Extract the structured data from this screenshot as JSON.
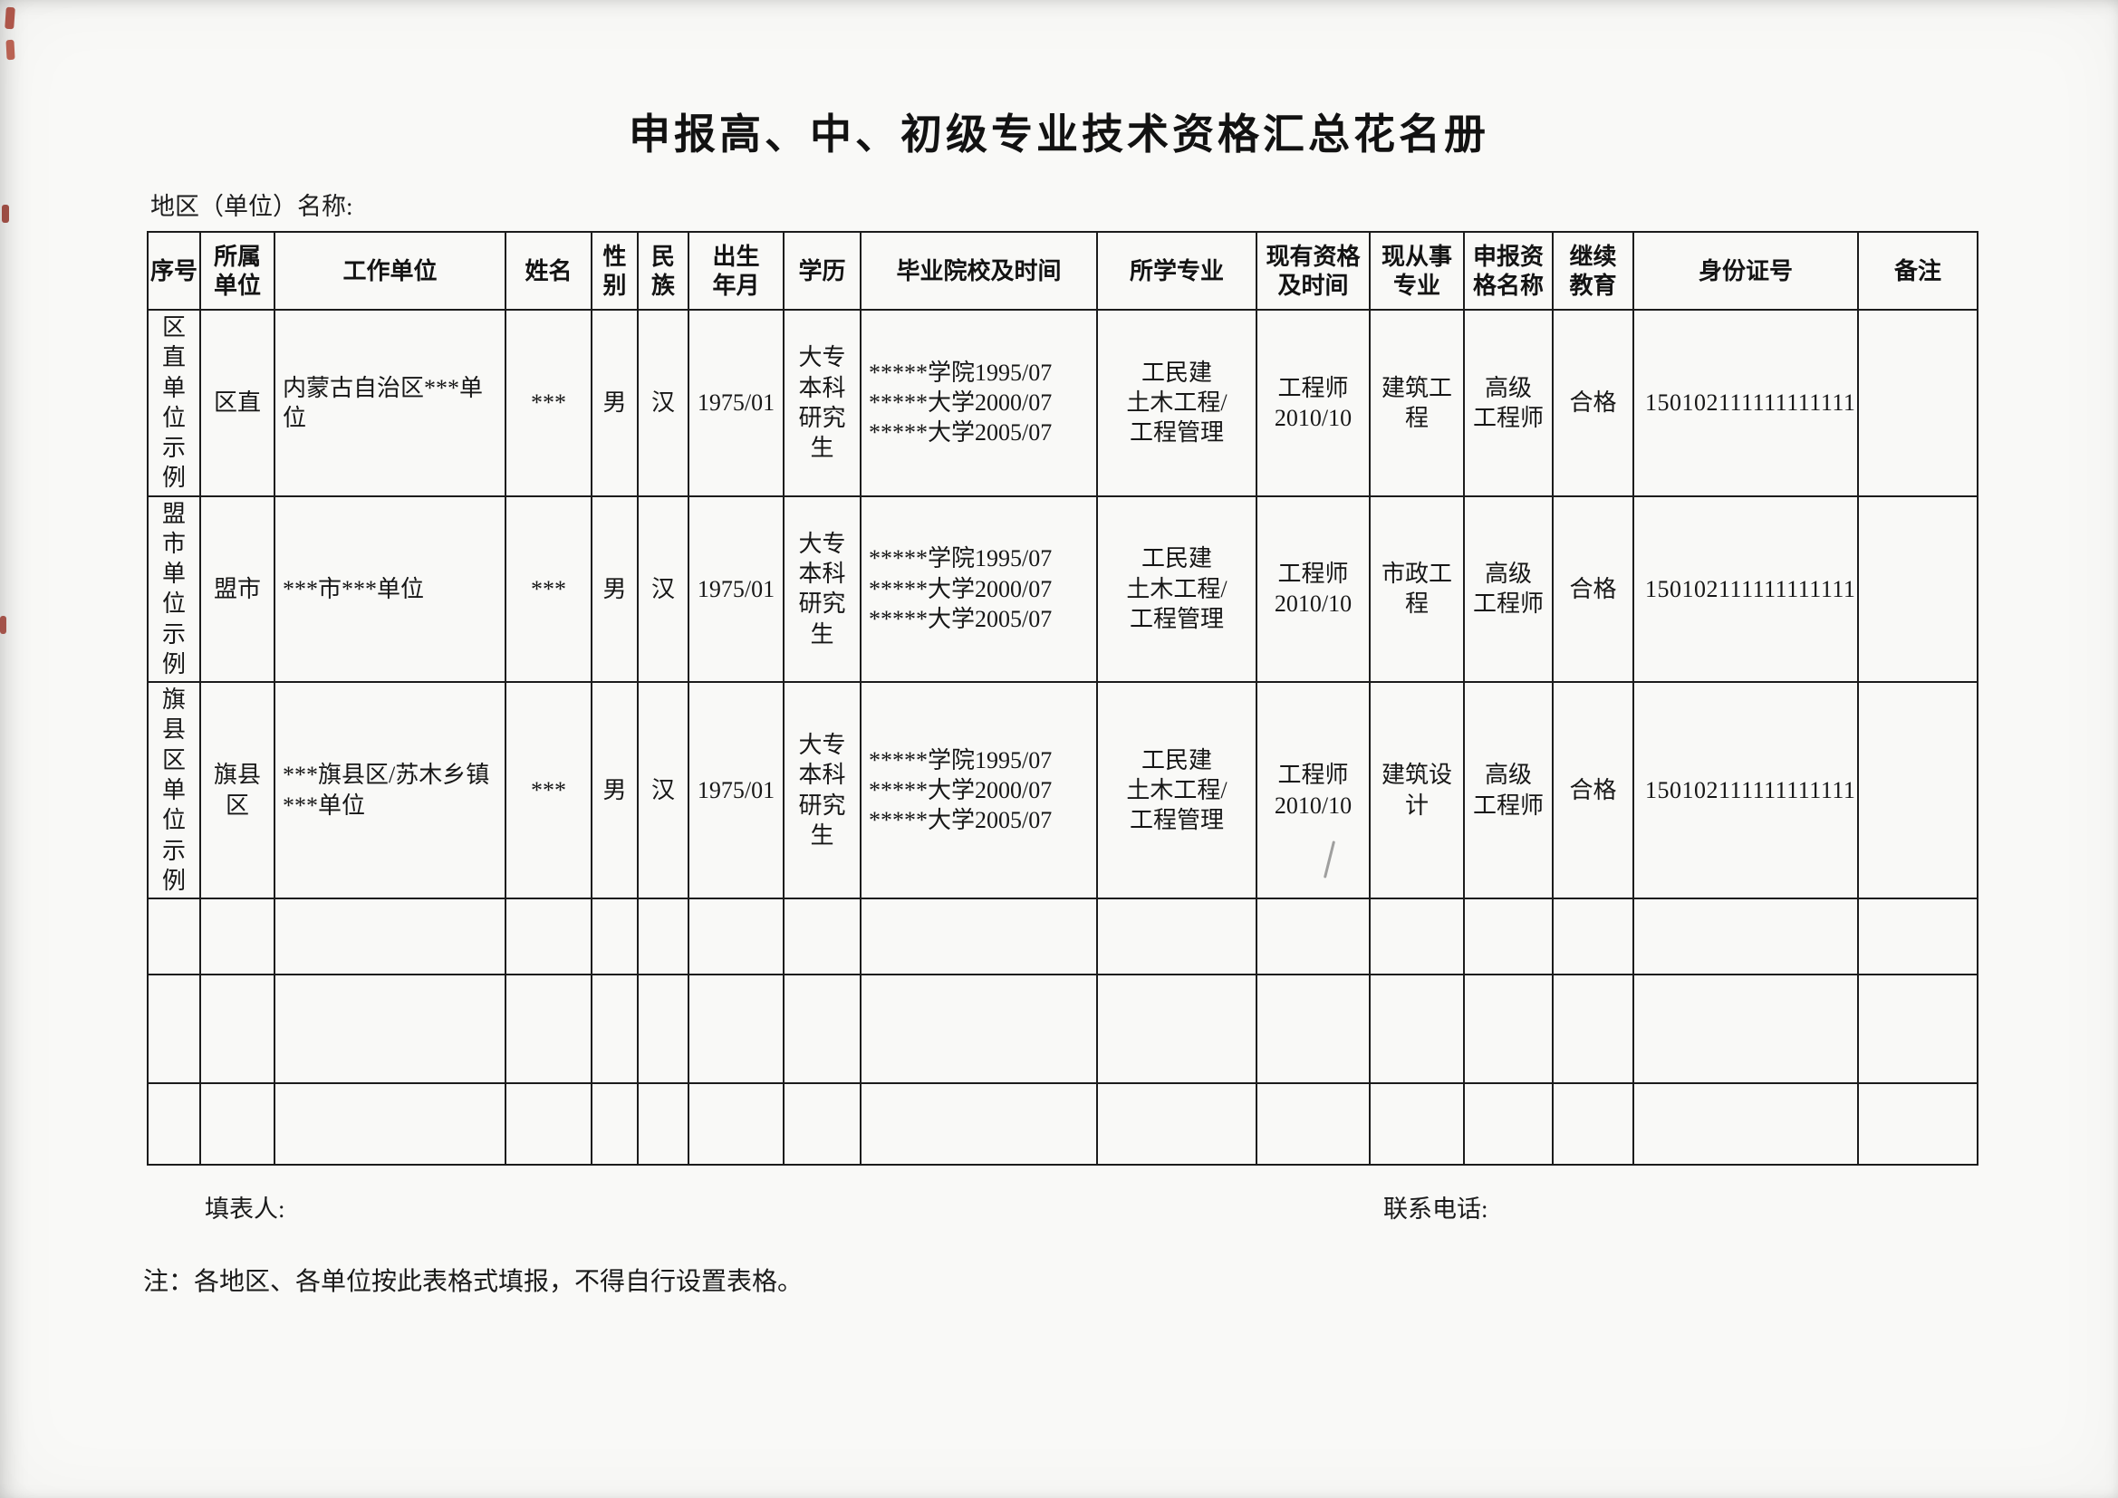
{
  "page": {
    "title": "申报高、中、初级专业技术资格汇总花名册",
    "region_label": "地区（单位）名称:",
    "filler_label": "填表人:",
    "phone_label": "联系电话:",
    "note": "注：各地区、各单位按此表格式填报，不得自行设置表格。"
  },
  "table": {
    "headers": [
      "序号",
      "所属\n单位",
      "工作单位",
      "姓名",
      "性\n别",
      "民\n族",
      "出生\n年月",
      "学历",
      "毕业院校及时间",
      "所学专业",
      "现有资格\n及时间",
      "现从事\n专业",
      "申报资\n格名称",
      "继续\n教育",
      "身份证号",
      "备注"
    ],
    "rows": [
      [
        "区直\n单位\n示例",
        "区直",
        "内蒙古自治区***单位",
        "***",
        "男",
        "汉",
        "1975/01",
        "大专\n本科\n研究生",
        "*****学院1995/07\n*****大学2000/07\n*****大学2005/07",
        "工民建\n土木工程/\n工程管理",
        "工程师\n2010/10",
        "建筑工程",
        "高级\n工程师",
        "合格",
        "150102111111111111",
        ""
      ],
      [
        "盟市\n单位\n示例",
        "盟市",
        "***市***单位",
        "***",
        "男",
        "汉",
        "1975/01",
        "大专\n本科\n研究生",
        "*****学院1995/07\n*****大学2000/07\n*****大学2005/07",
        "工民建\n土木工程/\n工程管理",
        "工程师\n2010/10",
        "市政工程",
        "高级\n工程师",
        "合格",
        "150102111111111111",
        ""
      ],
      [
        "旗县\n区单\n位示\n例",
        "旗县\n区",
        "***旗县区/苏木乡镇***单位",
        "***",
        "男",
        "汉",
        "1975/01",
        "大专\n本科\n研究生",
        "*****学院1995/07\n*****大学2000/07\n*****大学2005/07",
        "工民建\n土木工程/\n工程管理",
        "工程师\n2010/10",
        "建筑设计",
        "高级\n工程师",
        "合格",
        "150102111111111111",
        ""
      ],
      [
        "",
        "",
        "",
        "",
        "",
        "",
        "",
        "",
        "",
        "",
        "",
        "",
        "",
        "",
        "",
        ""
      ],
      [
        "",
        "",
        "",
        "",
        "",
        "",
        "",
        "",
        "",
        "",
        "",
        "",
        "",
        "",
        "",
        ""
      ],
      [
        "",
        "",
        "",
        "",
        "",
        "",
        "",
        "",
        "",
        "",
        "",
        "",
        "",
        "",
        "",
        ""
      ]
    ]
  },
  "colors": {
    "ink": "#1b1b1b",
    "paper": "#f9f9f7",
    "edge_mark_red": "#a33c2e"
  }
}
